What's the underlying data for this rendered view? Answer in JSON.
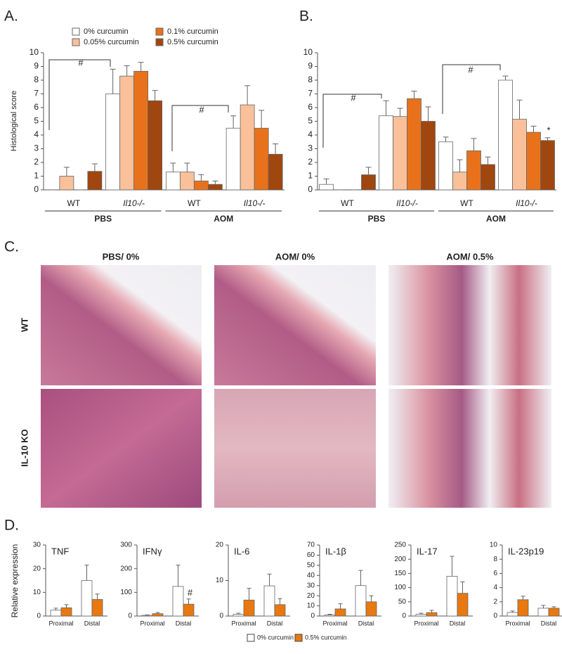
{
  "chart_data": [
    {
      "type": "bar",
      "panel_label": "A.",
      "ylabel": "Histological score",
      "categories": [
        "WT",
        "Il10-/-",
        "WT",
        "Il10-/-"
      ],
      "category_groups": [
        "PBS",
        "AOM"
      ],
      "ylim": [
        0,
        10
      ],
      "yticks": [
        0,
        1,
        2,
        3,
        4,
        5,
        6,
        7,
        8,
        9,
        10
      ],
      "series": [
        {
          "name": "0% curcumin",
          "color": "#ffffff",
          "values": [
            0,
            7.0,
            1.3,
            4.5
          ],
          "errors": [
            0,
            1.8,
            0.65,
            0.9
          ]
        },
        {
          "name": "0.05% curcumin",
          "color": "#f9c09a",
          "values": [
            1.0,
            8.3,
            1.3,
            6.2
          ],
          "errors": [
            0.65,
            0.75,
            0.65,
            1.4
          ]
        },
        {
          "name": "0.1% curcumin",
          "color": "#e8721c",
          "values": [
            0,
            8.65,
            0.65,
            4.5
          ],
          "errors": [
            0,
            0.65,
            0.45,
            1.3
          ]
        },
        {
          "name": "0.5% curcumin",
          "color": "#a0460f",
          "values": [
            1.35,
            6.5,
            0.4,
            2.6
          ],
          "errors": [
            0.55,
            0.75,
            0.25,
            0.75
          ]
        }
      ],
      "annotations": [
        "#",
        "#"
      ]
    },
    {
      "type": "bar",
      "panel_label": "B.",
      "categories": [
        "WT",
        "Il10-/-",
        "WT",
        "Il10-/-"
      ],
      "category_groups": [
        "PBS",
        "AOM"
      ],
      "ylim": [
        0,
        10
      ],
      "yticks": [
        0,
        1,
        2,
        3,
        4,
        5,
        6,
        7,
        8,
        9,
        10
      ],
      "series": [
        {
          "color": "#ffffff",
          "values": [
            0.4,
            5.4,
            3.5,
            8.0
          ],
          "errors": [
            0.4,
            1.1,
            0.35,
            0.3
          ]
        },
        {
          "color": "#f9c09a",
          "values": [
            0,
            5.35,
            1.3,
            5.15
          ],
          "errors": [
            0,
            0.6,
            0.9,
            1.4
          ]
        },
        {
          "color": "#e8721c",
          "values": [
            0,
            6.65,
            2.85,
            4.2
          ],
          "errors": [
            0,
            0.55,
            0.9,
            0.45
          ]
        },
        {
          "color": "#a0460f",
          "values": [
            1.1,
            5.0,
            1.85,
            3.6
          ],
          "errors": [
            0.55,
            1.05,
            0.55,
            0.2
          ]
        }
      ],
      "annotations": [
        "#",
        "#",
        "*"
      ]
    },
    {
      "type": "bar",
      "panel_label": "D.",
      "title": "TNF",
      "ylabel": "Relative expression",
      "categories": [
        "Proximal",
        "Distal"
      ],
      "ylim": [
        0,
        30
      ],
      "yticks": [
        0,
        10,
        20,
        30
      ],
      "series": [
        {
          "name": "0% curcumin",
          "color": "#ffffff",
          "values": [
            2.5,
            15
          ],
          "errors": [
            0.8,
            6.5
          ]
        },
        {
          "name": "0.5% curcumin",
          "color": "#e8780f",
          "values": [
            3.5,
            7
          ],
          "errors": [
            1.3,
            2.3
          ]
        }
      ]
    },
    {
      "type": "bar",
      "title": "IFNγ",
      "categories": [
        "Proximal",
        "Distal"
      ],
      "ylim": [
        0,
        300
      ],
      "yticks": [
        0,
        100,
        200,
        300
      ],
      "series": [
        {
          "color": "#ffffff",
          "values": [
            3,
            125
          ],
          "errors": [
            2,
            90
          ]
        },
        {
          "color": "#e8780f",
          "values": [
            10,
            50
          ],
          "errors": [
            5,
            22
          ]
        }
      ],
      "annotations": [
        "#"
      ]
    },
    {
      "type": "bar",
      "title": "IL-6",
      "categories": [
        "Proximal",
        "Distal"
      ],
      "ylim": [
        0,
        20
      ],
      "yticks": [
        0,
        10,
        20
      ],
      "series": [
        {
          "color": "#ffffff",
          "values": [
            0.5,
            8.5
          ],
          "errors": [
            0.3,
            3.3
          ]
        },
        {
          "color": "#e8780f",
          "values": [
            4.5,
            3.2
          ],
          "errors": [
            3.3,
            1.7
          ]
        }
      ]
    },
    {
      "type": "bar",
      "title": "IL-1β",
      "categories": [
        "Proximal",
        "Distal"
      ],
      "ylim": [
        0,
        70
      ],
      "yticks": [
        0,
        10,
        20,
        30,
        40,
        50,
        60,
        70
      ],
      "series": [
        {
          "color": "#ffffff",
          "values": [
            1,
            30
          ],
          "errors": [
            0.7,
            15
          ]
        },
        {
          "color": "#e8780f",
          "values": [
            7,
            14
          ],
          "errors": [
            5,
            6
          ]
        }
      ]
    },
    {
      "type": "bar",
      "title": "IL-17",
      "categories": [
        "Proximal",
        "Distal"
      ],
      "ylim": [
        0,
        250
      ],
      "yticks": [
        0,
        50,
        100,
        150,
        200,
        250
      ],
      "series": [
        {
          "color": "#ffffff",
          "values": [
            6,
            140
          ],
          "errors": [
            4,
            70
          ]
        },
        {
          "color": "#e8780f",
          "values": [
            12,
            80
          ],
          "errors": [
            8,
            40
          ]
        }
      ]
    },
    {
      "type": "bar",
      "title": "IL-23p19",
      "categories": [
        "Proximal",
        "Distal"
      ],
      "ylim": [
        0,
        10
      ],
      "yticks": [
        0,
        2,
        4,
        6,
        8,
        10
      ],
      "series": [
        {
          "color": "#ffffff",
          "values": [
            0.5,
            1.1
          ],
          "errors": [
            0.2,
            0.4
          ]
        },
        {
          "color": "#e8780f",
          "values": [
            2.3,
            1.1
          ],
          "errors": [
            0.5,
            0.2
          ]
        }
      ]
    }
  ],
  "panel_c": {
    "label": "C.",
    "columns": [
      "PBS/ 0%",
      "AOM/ 0%",
      "AOM/ 0.5%"
    ],
    "rows": [
      "WT",
      "IL-10 KO"
    ]
  }
}
